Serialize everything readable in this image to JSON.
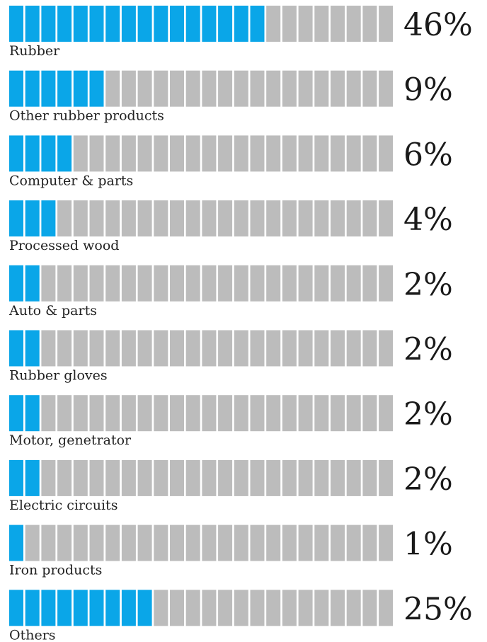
{
  "colors": {
    "filled": "#0aa6e8",
    "empty": "#bcbcbc",
    "text": "#1a1a1a"
  },
  "chart_data": {
    "type": "bar",
    "segments_per_bar": 24,
    "categories": [
      "Rubber",
      "Other rubber products",
      "Computer & parts",
      "Processed wood",
      "Auto & parts",
      "Rubber gloves",
      "Motor, genetrator",
      "Electric circuits",
      "Iron products",
      "Others"
    ],
    "values": [
      46,
      9,
      6,
      4,
      2,
      2,
      2,
      2,
      1,
      25
    ],
    "value_labels": [
      "46%",
      "9%",
      "6%",
      "4%",
      "2%",
      "2%",
      "2%",
      "2%",
      "1%",
      "25%"
    ],
    "filled_segments": [
      16,
      6,
      4,
      3,
      2,
      2,
      2,
      2,
      1,
      9
    ]
  }
}
